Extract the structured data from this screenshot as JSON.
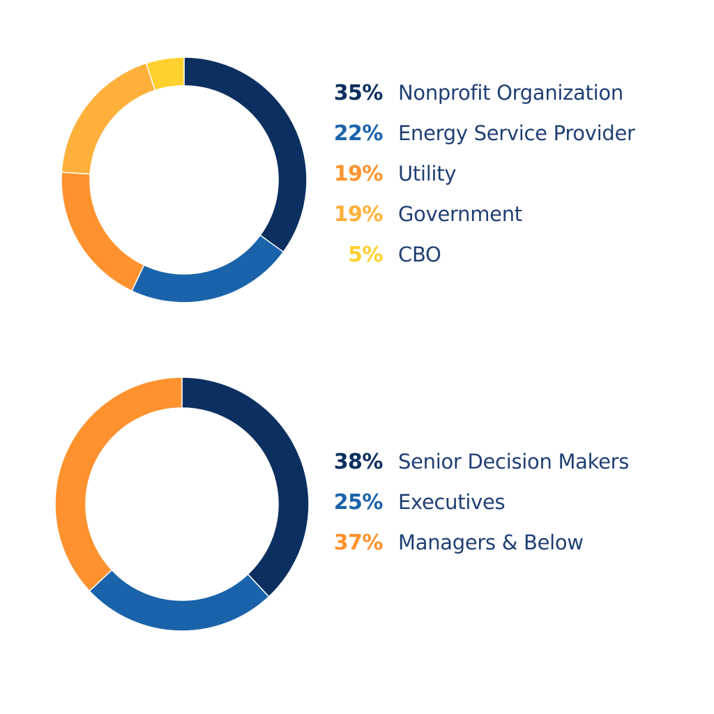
{
  "colors": {
    "navy": "#0b2f5f",
    "blue": "#1a63aa",
    "orange": "#ff922e",
    "light_orange": "#ffb03a",
    "yellow": "#ffd02e",
    "label_text": "#1f3f73"
  },
  "chart_data": [
    {
      "type": "pie",
      "style": "donut",
      "legend_position": "right",
      "slices": [
        {
          "label": "Nonprofit Organization",
          "value": 35,
          "value_label": "35%",
          "color": "#0b2f5f"
        },
        {
          "label": "Energy Service Provider",
          "value": 22,
          "value_label": "22%",
          "color": "#1a63aa"
        },
        {
          "label": "Utility",
          "value": 19,
          "value_label": "19%",
          "color": "#ff922e"
        },
        {
          "label": "Government",
          "value": 19,
          "value_label": "19%",
          "color": "#ffb03a"
        },
        {
          "label": "CBO",
          "value": 5,
          "value_label": "5%",
          "color": "#ffd02e"
        }
      ]
    },
    {
      "type": "pie",
      "style": "donut",
      "legend_position": "right",
      "slices": [
        {
          "label": "Senior Decision Makers",
          "value": 38,
          "value_label": "38%",
          "color": "#0b2f5f"
        },
        {
          "label": "Executives",
          "value": 25,
          "value_label": "25%",
          "color": "#1a63aa"
        },
        {
          "label": "Managers & Below",
          "value": 37,
          "value_label": "37%",
          "color": "#ff922e"
        }
      ]
    }
  ]
}
